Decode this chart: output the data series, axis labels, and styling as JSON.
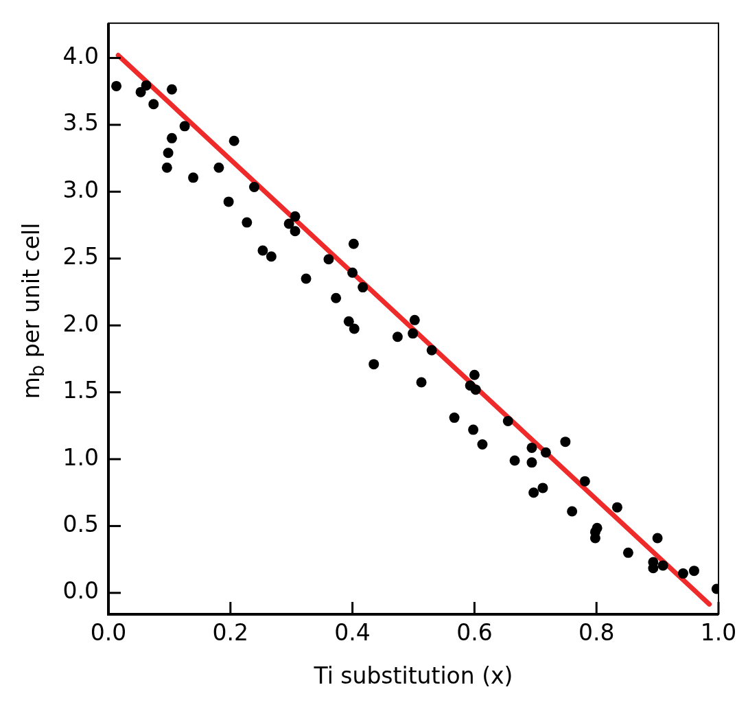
{
  "chart_data": {
    "type": "scatter",
    "xlabel": "Ti substitution (x)",
    "ylabel": "m$_{b}$ per unit cell",
    "xlim": [
      0,
      1
    ],
    "xticks": [
      {
        "value": 0,
        "label": "0.0"
      },
      0.2,
      0.4,
      0.6,
      0.8,
      {
        "value": 1,
        "label": "1.0"
      }
    ],
    "ylim": [
      -0.16,
      4.26
    ],
    "yticks": [
      {
        "value": 0,
        "label": "0.0"
      },
      0.5,
      {
        "value": 1,
        "label": "1.0"
      },
      1.5,
      {
        "value": 2,
        "label": "2.0"
      },
      2.5,
      {
        "value": 3,
        "label": "3.0"
      },
      3.5,
      {
        "value": 4,
        "label": "4.0"
      }
    ],
    "grid": false,
    "legend": false,
    "series": [
      {
        "type": "scatter",
        "color": "#000000",
        "marker": "circle",
        "x": [
          0.013,
          0.053,
          0.062,
          0.074,
          0.104,
          0.125,
          0.104,
          0.098,
          0.096,
          0.139,
          0.206,
          0.181,
          0.197,
          0.239,
          0.227,
          0.253,
          0.267,
          0.306,
          0.296,
          0.306,
          0.324,
          0.361,
          0.373,
          0.402,
          0.4,
          0.417,
          0.394,
          0.403,
          0.435,
          0.474,
          0.502,
          0.499,
          0.53,
          0.513,
          0.567,
          0.593,
          0.6,
          0.602,
          0.598,
          0.613,
          0.655,
          0.666,
          0.694,
          0.694,
          0.697,
          0.717,
          0.712,
          0.749,
          0.76,
          0.781,
          0.798,
          0.798,
          0.801,
          0.834,
          0.852,
          0.9,
          0.893,
          0.893,
          0.909,
          0.942,
          0.96,
          0.997
        ],
        "values": [
          3.79,
          3.745,
          3.795,
          3.655,
          3.765,
          3.49,
          3.4,
          3.29,
          3.18,
          3.105,
          3.38,
          3.18,
          2.925,
          3.035,
          2.77,
          2.56,
          2.515,
          2.815,
          2.76,
          2.705,
          2.35,
          2.495,
          2.205,
          2.61,
          2.395,
          2.285,
          2.03,
          1.975,
          1.71,
          1.915,
          2.04,
          1.94,
          1.815,
          1.575,
          1.31,
          1.55,
          1.63,
          1.52,
          1.22,
          1.11,
          1.285,
          0.99,
          1.085,
          0.975,
          0.75,
          1.05,
          0.785,
          1.13,
          0.61,
          0.835,
          0.41,
          0.455,
          0.485,
          0.64,
          0.3,
          0.41,
          0.23,
          0.185,
          0.205,
          0.145,
          0.165,
          0.03
        ]
      },
      {
        "type": "line",
        "color": "#ee2a2a",
        "marker": "none",
        "line_style": "solid",
        "x": [
          0.016,
          0.985
        ],
        "values": [
          4.02,
          -0.085
        ]
      }
    ]
  }
}
